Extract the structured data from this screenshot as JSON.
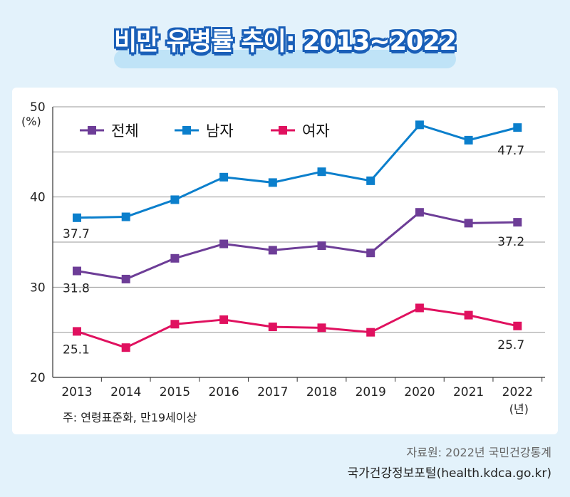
{
  "title": "비만 유병률 추이: 2013~2022",
  "note": "주: 연령표준화, 만19세이상",
  "source_line1": "자료원: 2022년 국민건강통계",
  "source_line2": "국가건강정보포털(health.kdca.go.kr)",
  "colors": {
    "total": "#6d3d97",
    "male": "#0b7fcc",
    "female": "#e0115f",
    "title_stroke": "#1a5fb8"
  },
  "chart_data": {
    "type": "line",
    "title": "비만 유병률 추이: 2013~2022",
    "ylabel": "(%)",
    "xlabel_unit": "(년)",
    "ylim": [
      20,
      50
    ],
    "yticks": [
      20,
      30,
      40,
      50
    ],
    "categories": [
      "2013",
      "2014",
      "2015",
      "2016",
      "2017",
      "2018",
      "2019",
      "2020",
      "2021",
      "2022"
    ],
    "series": [
      {
        "name": "전체",
        "color": "#6d3d97",
        "values": [
          31.8,
          30.9,
          33.2,
          34.8,
          34.1,
          34.6,
          33.8,
          38.3,
          37.1,
          37.2
        ],
        "labels": {
          "0": "31.8",
          "9": "37.2"
        }
      },
      {
        "name": "남자",
        "color": "#0b7fcc",
        "values": [
          37.7,
          37.8,
          39.7,
          42.2,
          41.6,
          42.8,
          41.8,
          48.0,
          46.3,
          47.7
        ],
        "labels": {
          "0": "37.7",
          "9": "47.7"
        }
      },
      {
        "name": "여자",
        "color": "#e0115f",
        "values": [
          25.1,
          23.3,
          25.9,
          26.4,
          25.6,
          25.5,
          25.0,
          27.7,
          26.9,
          25.7
        ],
        "labels": {
          "0": "25.1",
          "9": "25.7"
        }
      }
    ]
  }
}
